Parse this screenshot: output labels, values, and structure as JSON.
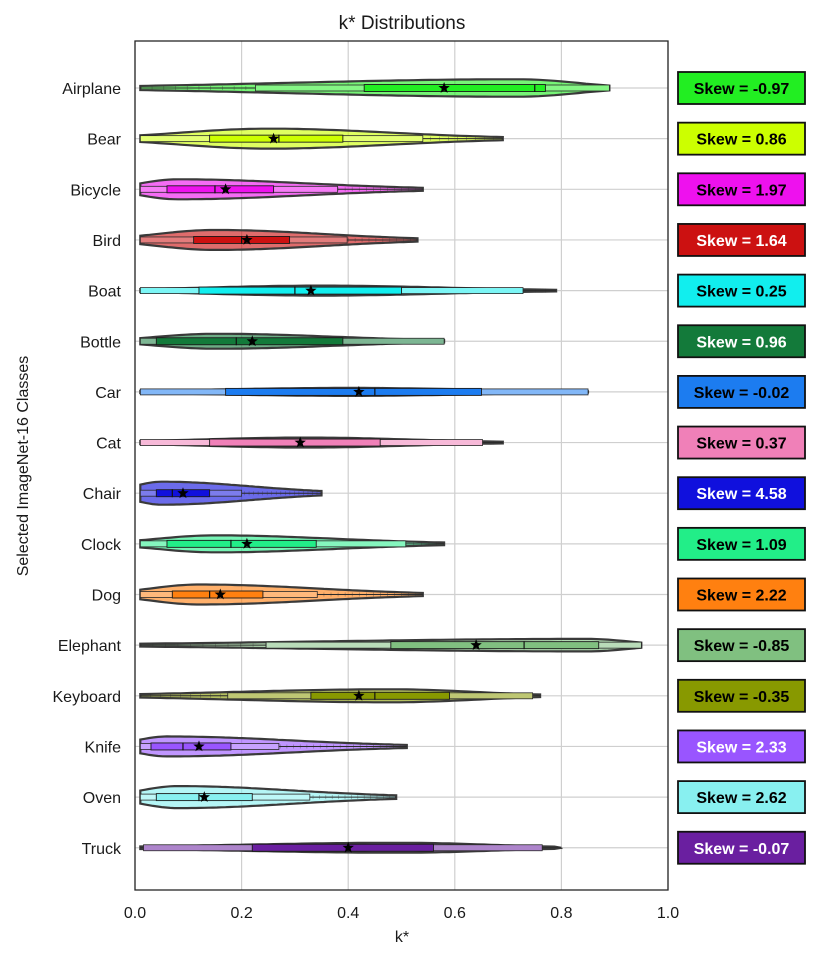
{
  "chart_data": {
    "type": "violin",
    "title": "k* Distributions",
    "xlabel": "k*",
    "ylabel": "Selected ImageNet-16 Classes",
    "xlim": [
      0.0,
      1.0
    ],
    "xticks": [
      "0.0",
      "0.2",
      "0.4",
      "0.6",
      "0.8",
      "1.0"
    ],
    "grid": true,
    "categories": [
      "Airplane",
      "Bear",
      "Bicycle",
      "Bird",
      "Boat",
      "Bottle",
      "Car",
      "Cat",
      "Chair",
      "Clock",
      "Dog",
      "Elephant",
      "Keyboard",
      "Knife",
      "Oven",
      "Truck"
    ],
    "colors": [
      "#22ee22",
      "#ccff00",
      "#ee11ee",
      "#cc1111",
      "#11eeee",
      "#137a3a",
      "#1c7cf0",
      "#f080b8",
      "#1010dd",
      "#22ee88",
      "#ff8010",
      "#80c080",
      "#889900",
      "#9955ff",
      "#88f0f0",
      "#6a1fa0"
    ],
    "label_text_colors": [
      "#000000",
      "#000000",
      "#000000",
      "#ffffff",
      "#000000",
      "#ffffff",
      "#000000",
      "#000000",
      "#ffffff",
      "#000000",
      "#000000",
      "#000000",
      "#000000",
      "#ffffff",
      "#000000",
      "#ffffff"
    ],
    "series": [
      {
        "name": "Airplane",
        "min": 0.01,
        "max": 0.89,
        "q1": 0.43,
        "median": 0.75,
        "q3": 0.77,
        "mean": 0.58,
        "skew": "Skew = -0.97",
        "peak": 0.72,
        "width": 0.35
      },
      {
        "name": "Bear",
        "min": 0.01,
        "max": 0.69,
        "q1": 0.14,
        "median": 0.27,
        "q3": 0.39,
        "mean": 0.26,
        "skew": "Skew = 0.86",
        "peak": 0.25,
        "width": 0.4
      },
      {
        "name": "Bicycle",
        "min": 0.01,
        "max": 0.54,
        "q1": 0.06,
        "median": 0.15,
        "q3": 0.26,
        "mean": 0.17,
        "skew": "Skew = 1.97",
        "peak": 0.08,
        "width": 0.4
      },
      {
        "name": "Bird",
        "min": 0.01,
        "max": 0.53,
        "q1": 0.11,
        "median": 0.2,
        "q3": 0.29,
        "mean": 0.21,
        "skew": "Skew = 1.64",
        "peak": 0.15,
        "width": 0.4
      },
      {
        "name": "Boat",
        "min": 0.01,
        "max": 0.79,
        "q1": 0.12,
        "median": 0.3,
        "q3": 0.5,
        "mean": 0.33,
        "skew": "Skew = 0.25",
        "peak": 0.35,
        "width": 0.2
      },
      {
        "name": "Bottle",
        "min": 0.01,
        "max": 0.58,
        "q1": 0.04,
        "median": 0.19,
        "q3": 0.39,
        "mean": 0.22,
        "skew": "Skew = 0.96",
        "peak": 0.15,
        "width": 0.3
      },
      {
        "name": "Car",
        "min": 0.01,
        "max": 0.85,
        "q1": 0.17,
        "median": 0.45,
        "q3": 0.65,
        "mean": 0.42,
        "skew": "Skew = -0.02",
        "peak": 0.4,
        "width": 0.16
      },
      {
        "name": "Cat",
        "min": 0.01,
        "max": 0.69,
        "q1": 0.14,
        "median": 0.31,
        "q3": 0.46,
        "mean": 0.31,
        "skew": "Skew = 0.37",
        "peak": 0.32,
        "width": 0.2
      },
      {
        "name": "Chair",
        "min": 0.01,
        "max": 0.35,
        "q1": 0.04,
        "median": 0.07,
        "q3": 0.14,
        "mean": 0.09,
        "skew": "Skew = 4.58",
        "peak": 0.05,
        "width": 0.46
      },
      {
        "name": "Clock",
        "min": 0.01,
        "max": 0.58,
        "q1": 0.06,
        "median": 0.18,
        "q3": 0.34,
        "mean": 0.21,
        "skew": "Skew = 1.09",
        "peak": 0.15,
        "width": 0.34
      },
      {
        "name": "Dog",
        "min": 0.01,
        "max": 0.54,
        "q1": 0.07,
        "median": 0.14,
        "q3": 0.24,
        "mean": 0.16,
        "skew": "Skew = 2.22",
        "peak": 0.12,
        "width": 0.4
      },
      {
        "name": "Elephant",
        "min": 0.01,
        "max": 0.95,
        "q1": 0.48,
        "median": 0.73,
        "q3": 0.87,
        "mean": 0.64,
        "skew": "Skew = -0.85",
        "peak": 0.85,
        "width": 0.25
      },
      {
        "name": "Keyboard",
        "min": 0.01,
        "max": 0.76,
        "q1": 0.33,
        "median": 0.45,
        "q3": 0.59,
        "mean": 0.42,
        "skew": "Skew = -0.35",
        "peak": 0.48,
        "width": 0.26
      },
      {
        "name": "Knife",
        "min": 0.01,
        "max": 0.51,
        "q1": 0.03,
        "median": 0.09,
        "q3": 0.18,
        "mean": 0.12,
        "skew": "Skew = 2.33",
        "peak": 0.06,
        "width": 0.4
      },
      {
        "name": "Oven",
        "min": 0.01,
        "max": 0.49,
        "q1": 0.04,
        "median": 0.12,
        "q3": 0.22,
        "mean": 0.13,
        "skew": "Skew = 2.62",
        "peak": 0.08,
        "width": 0.44
      },
      {
        "name": "Truck",
        "min": 0.01,
        "max": 0.8,
        "q1": 0.22,
        "median": 0.4,
        "q3": 0.56,
        "mean": 0.4,
        "skew": "Skew = -0.07",
        "peak": 0.5,
        "width": 0.2
      }
    ]
  }
}
